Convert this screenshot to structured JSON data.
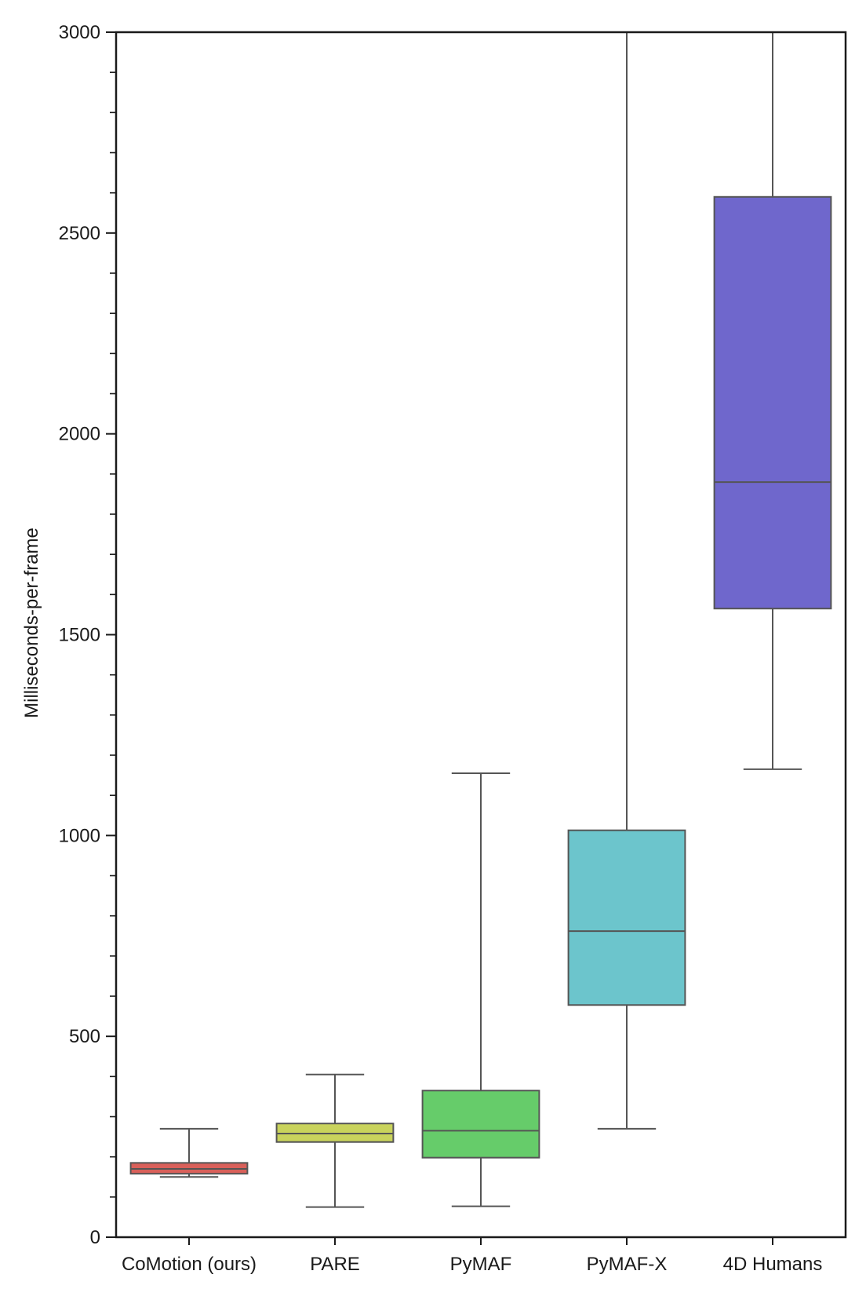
{
  "chart_data": {
    "type": "box",
    "title": "",
    "xlabel": "",
    "ylabel": "Milliseconds-per-frame",
    "ylim": [
      0,
      3000
    ],
    "yticks_major": [
      0,
      500,
      1000,
      1500,
      2000,
      2500,
      3000
    ],
    "yticks_minor_step": 100,
    "grid": false,
    "categories": [
      "CoMotion (ours)",
      "PARE",
      "PyMAF",
      "PyMAF-X",
      "4D Humans"
    ],
    "boxes": [
      {
        "name": "CoMotion (ours)",
        "whisker_low": 150,
        "q1": 158,
        "median": 170,
        "q3": 185,
        "whisker_high": 270,
        "color": "#d9605a"
      },
      {
        "name": "PARE",
        "whisker_low": 75,
        "q1": 237,
        "median": 258,
        "q3": 283,
        "whisker_high": 405,
        "color": "#c9d35c"
      },
      {
        "name": "PyMAF",
        "whisker_low": 77,
        "q1": 198,
        "median": 265,
        "q3": 365,
        "whisker_high": 1155,
        "color": "#66cc6a"
      },
      {
        "name": "PyMAF-X",
        "whisker_low": 270,
        "q1": 578,
        "median": 762,
        "q3": 1013,
        "whisker_high": 3000,
        "color": "#6cc5cc"
      },
      {
        "name": "4D Humans",
        "whisker_low": 1165,
        "q1": 1565,
        "median": 1880,
        "q3": 2590,
        "whisker_high": 3000,
        "color": "#6f67cc"
      }
    ]
  }
}
